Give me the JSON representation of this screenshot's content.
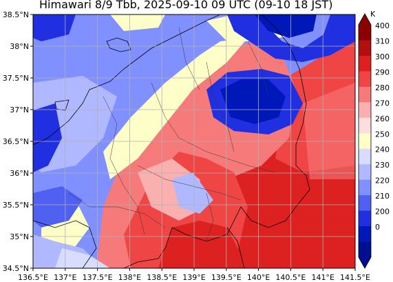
{
  "title": "Himawari 8/9 Tbb, 2025-09-10 09 UTC (09-10 18 JST)",
  "map": {
    "lon_range": [
      136.5,
      141.5
    ],
    "lat_range": [
      34.5,
      38.5
    ],
    "x_ticks": [
      "136.5°E",
      "137°E",
      "137.5°E",
      "138°E",
      "138.5°E",
      "139°E",
      "139.5°E",
      "140°E",
      "140.5°E",
      "141°E",
      "141.5°E"
    ],
    "y_ticks": [
      "38.5°N",
      "38°N",
      "37.5°N",
      "37°N",
      "36.5°N",
      "36°N",
      "35.5°N",
      "35°N",
      "34.5°N"
    ],
    "grid": true
  },
  "colorbar": {
    "unit": "K",
    "labels": [
      "400",
      "310",
      "300",
      "290",
      "280",
      "270",
      "260",
      "250",
      "240",
      "230",
      "220",
      "210",
      "200",
      "0"
    ],
    "colors": [
      "#8b0000",
      "#b01010",
      "#dd2020",
      "#f04545",
      "#f77a7a",
      "#fbb0b0",
      "#fcdede",
      "#fefec8",
      "#d8dcff",
      "#b0b8ff",
      "#8090ff",
      "#5060f0",
      "#2030e0",
      "#0018b8",
      "#000e90"
    ]
  }
}
